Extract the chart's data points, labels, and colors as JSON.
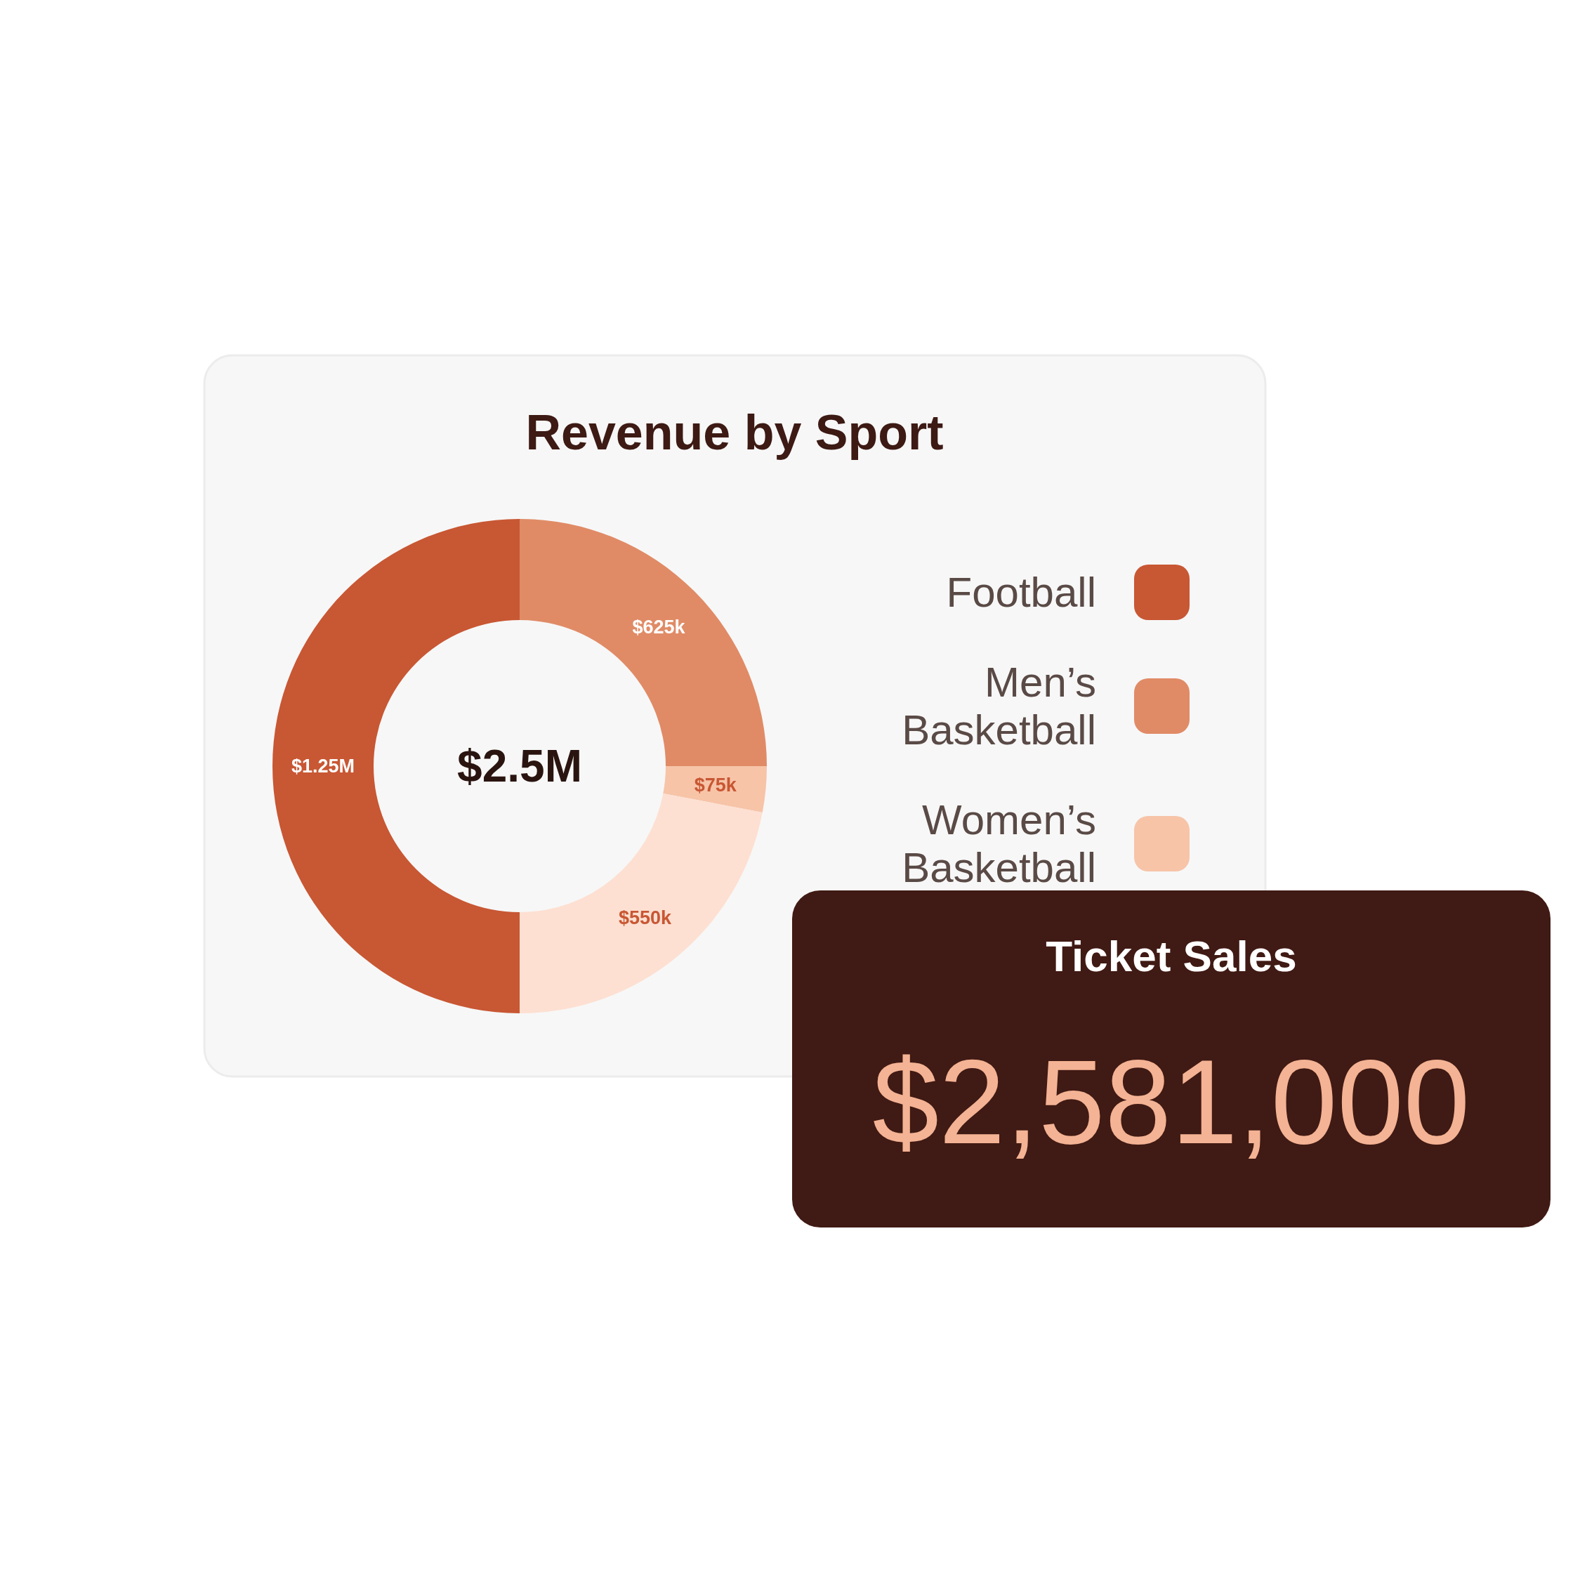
{
  "chart_data": [
    {
      "type": "donut",
      "title": "Revenue by Sport",
      "categories": [
        "Football",
        "Men’s Basketball",
        "Women’s Basketball",
        null
      ],
      "values": [
        1250000,
        625000,
        75000,
        550000
      ],
      "value_labels": [
        "$1.25M",
        "$625k",
        "$75k",
        "$550k"
      ],
      "colors": [
        "#c85733",
        "#e08b66",
        "#f7c4a8",
        "#fde0d2"
      ],
      "annotations": [
        "$2.5M"
      ],
      "legend": "right"
    },
    {
      "type": "other",
      "title": "Ticket Sales",
      "annotations": [
        "$2,581,000"
      ]
    }
  ]
}
